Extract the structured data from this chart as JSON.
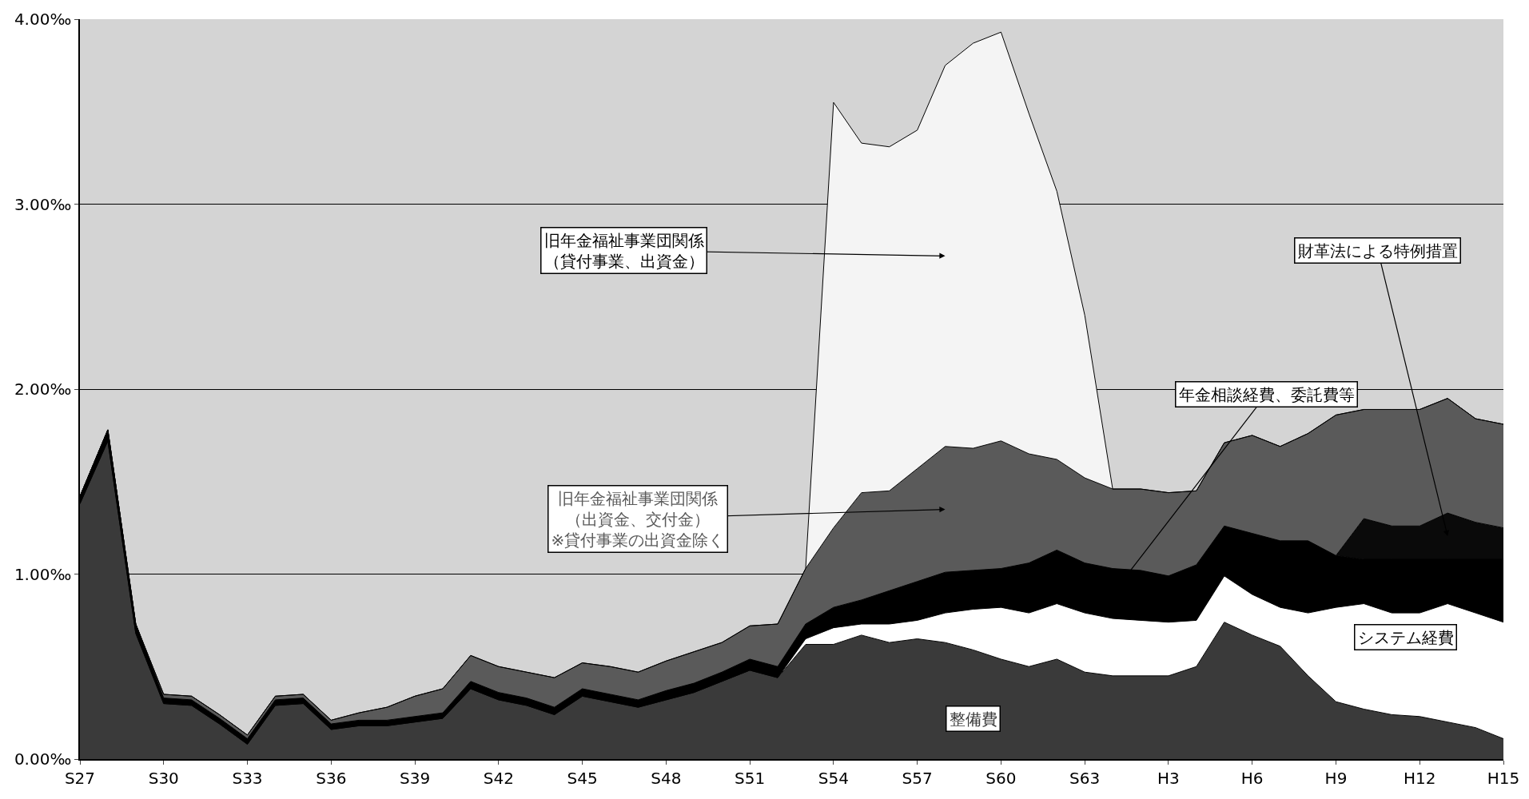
{
  "chart_data": {
    "type": "area",
    "stacked": true,
    "categories": [
      "S27",
      null,
      null,
      "S30",
      null,
      null,
      "S33",
      null,
      null,
      "S36",
      null,
      null,
      "S39",
      null,
      null,
      "S42",
      null,
      null,
      "S45",
      null,
      null,
      "S48",
      null,
      null,
      "S51",
      null,
      null,
      "S54",
      null,
      null,
      "S57",
      null,
      null,
      "S60",
      null,
      null,
      "S63",
      null,
      null,
      "H3",
      null,
      null,
      "H6",
      null,
      null,
      "H9",
      null,
      null,
      "H12",
      null,
      null,
      "H15"
    ],
    "ylim": [
      0,
      4
    ],
    "yticks": [
      {
        "value": 0,
        "label": "0.00‰"
      },
      {
        "value": 1,
        "label": "1.00‰"
      },
      {
        "value": 2,
        "label": "2.00‰"
      },
      {
        "value": 3,
        "label": "3.00‰"
      },
      {
        "value": 4,
        "label": "4.00‰"
      }
    ],
    "grid": "y",
    "legend": false,
    "series": [
      {
        "name": "整備費",
        "color": "#3a3a3a",
        "values": [
          1.38,
          1.72,
          0.68,
          0.3,
          0.29,
          0.19,
          0.08,
          0.29,
          0.3,
          0.16,
          0.18,
          0.18,
          0.2,
          0.22,
          0.38,
          0.32,
          0.29,
          0.24,
          0.34,
          0.31,
          0.28,
          0.32,
          0.36,
          0.42,
          0.48,
          0.44,
          0.62,
          0.62,
          0.67,
          0.63,
          0.65,
          0.63,
          0.59,
          0.54,
          0.5,
          0.54,
          0.47,
          0.45,
          0.45,
          0.45,
          0.5,
          0.74,
          0.67,
          0.61,
          0.45,
          0.31,
          0.27,
          0.24,
          0.23,
          0.2,
          0.17,
          0.11
        ]
      },
      {
        "name": "システム経費",
        "color": "#ffffff",
        "values": [
          0,
          0,
          0,
          0,
          0,
          0,
          0,
          0,
          0,
          0,
          0,
          0,
          0,
          0,
          0,
          0,
          0,
          0,
          0,
          0,
          0,
          0,
          0,
          0,
          0,
          0,
          0.03,
          0.09,
          0.06,
          0.1,
          0.1,
          0.16,
          0.22,
          0.28,
          0.29,
          0.3,
          0.32,
          0.31,
          0.3,
          0.29,
          0.25,
          0.25,
          0.22,
          0.21,
          0.34,
          0.51,
          0.57,
          0.55,
          0.56,
          0.64,
          0.62,
          0.63
        ]
      },
      {
        "name": "年金相談経費、委託費等",
        "color": "#000000",
        "values": [
          0.04,
          0.06,
          0.05,
          0.03,
          0.03,
          0.03,
          0.03,
          0.03,
          0.03,
          0.03,
          0.03,
          0.03,
          0.03,
          0.03,
          0.04,
          0.04,
          0.04,
          0.04,
          0.04,
          0.04,
          0.04,
          0.05,
          0.05,
          0.05,
          0.06,
          0.06,
          0.08,
          0.11,
          0.13,
          0.18,
          0.21,
          0.22,
          0.21,
          0.21,
          0.27,
          0.29,
          0.27,
          0.27,
          0.27,
          0.25,
          0.3,
          0.27,
          0.33,
          0.36,
          0.39,
          0.28,
          0.24,
          0.29,
          0.29,
          0.24,
          0.29,
          0.34
        ]
      },
      {
        "name": "財革法による特例措置",
        "color": "#0a0a0a",
        "values": [
          0,
          0,
          0,
          0,
          0,
          0,
          0,
          0,
          0,
          0,
          0,
          0,
          0,
          0,
          0,
          0,
          0,
          0,
          0,
          0,
          0,
          0,
          0,
          0,
          0,
          0,
          0,
          0,
          0,
          0,
          0,
          0,
          0,
          0,
          0,
          0,
          0,
          0,
          0,
          0,
          0,
          0,
          0,
          0,
          0,
          0,
          0.22,
          0.18,
          0.18,
          0.25,
          0.2,
          0.17
        ]
      },
      {
        "name": "旧年金福祉事業団関係（出資金、交付金）※貸付事業の出資金除く",
        "color": "#5a5a5a",
        "values": [
          0,
          0,
          0,
          0.02,
          0.02,
          0.02,
          0.02,
          0.02,
          0.02,
          0.02,
          0.04,
          0.07,
          0.11,
          0.13,
          0.14,
          0.14,
          0.14,
          0.16,
          0.14,
          0.15,
          0.15,
          0.16,
          0.17,
          0.16,
          0.18,
          0.23,
          0.3,
          0.43,
          0.58,
          0.54,
          0.61,
          0.68,
          0.66,
          0.69,
          0.59,
          0.49,
          0.46,
          0.43,
          0.44,
          0.45,
          0.4,
          0.45,
          0.53,
          0.51,
          0.58,
          0.76,
          0.59,
          0.63,
          0.63,
          0.62,
          0.56,
          0.56
        ]
      },
      {
        "name": "旧年金福祉事業団関係（貸付事業、出資金）",
        "color": "#f4f4f4",
        "values": [
          0,
          0,
          0,
          0,
          0,
          0,
          0,
          0,
          0,
          0,
          0,
          0,
          0,
          0,
          0,
          0,
          0,
          0,
          0,
          0,
          0,
          0,
          0,
          0,
          0,
          0,
          0,
          2.3,
          1.89,
          1.86,
          1.83,
          2.06,
          2.19,
          2.21,
          1.84,
          1.45,
          0.88,
          0,
          0,
          0,
          0,
          0,
          0,
          0,
          0,
          0,
          0,
          0,
          0,
          0,
          0,
          0
        ]
      }
    ]
  }
}
